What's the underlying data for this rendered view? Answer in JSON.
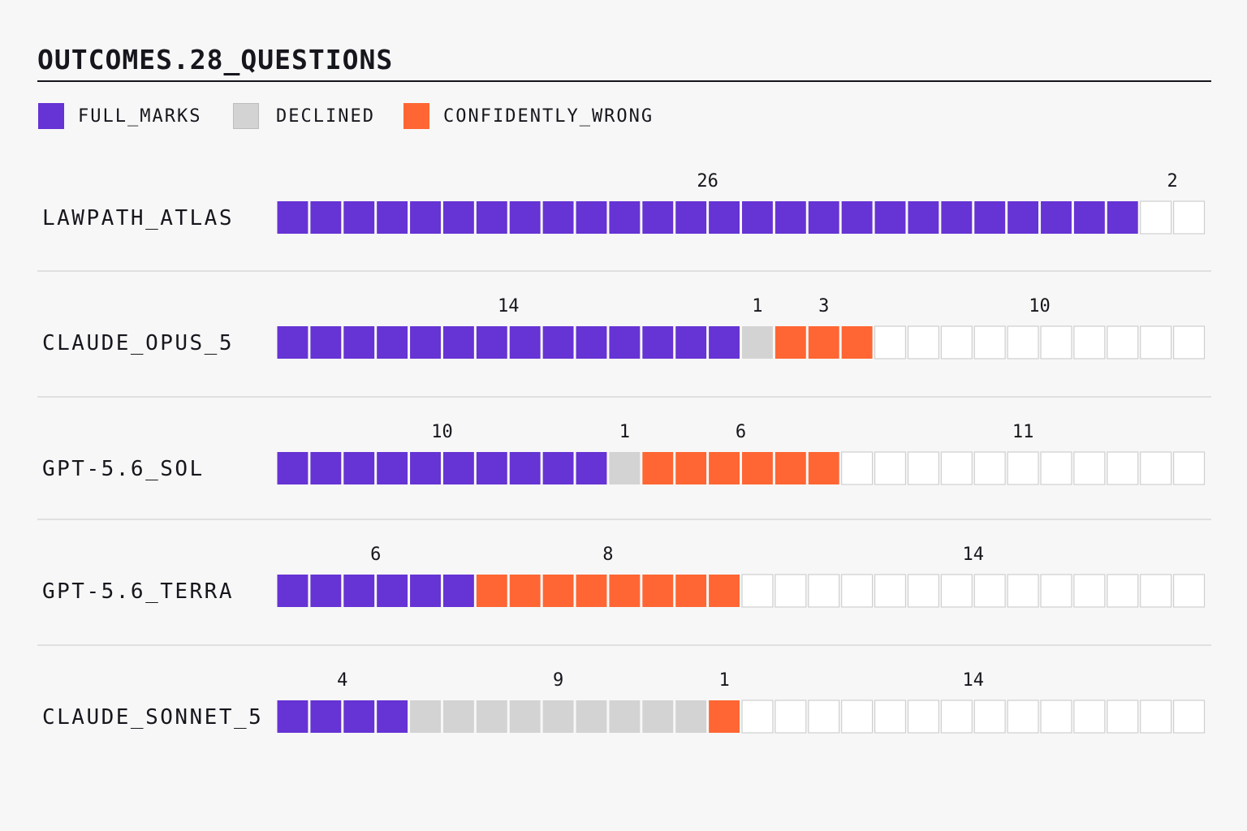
{
  "title": "OUTCOMES.28_QUESTIONS",
  "legend": [
    {
      "key": "full_marks",
      "label": "FULL_MARKS",
      "color": "#6633d4"
    },
    {
      "key": "declined",
      "label": "DECLINED",
      "color": "#d3d3d3"
    },
    {
      "key": "confidently_wrong",
      "label": "CONFIDENTLY_WRONG",
      "color": "#ff6633"
    }
  ],
  "chart_data": {
    "type": "bar",
    "subtype": "stacked-unit-squares",
    "total_questions": 28,
    "categories": [
      "LAWPATH_ATLAS",
      "CLAUDE_OPUS_5",
      "GPT-5.6_SOL",
      "GPT-5.6_TERRA",
      "CLAUDE_SONNET_5"
    ],
    "series": [
      {
        "name": "FULL_MARKS",
        "color": "#6633d4",
        "values": [
          26,
          14,
          10,
          6,
          4
        ]
      },
      {
        "name": "DECLINED",
        "color": "#d3d3d3",
        "values": [
          0,
          1,
          1,
          0,
          9
        ]
      },
      {
        "name": "CONFIDENTLY_WRONG",
        "color": "#ff6633",
        "values": [
          0,
          3,
          6,
          8,
          1
        ]
      }
    ],
    "remainder": {
      "values": [
        2,
        10,
        11,
        14,
        14
      ],
      "color": "#ffffff",
      "stroke": "#cfcfcf"
    },
    "legend_position": "top-left"
  }
}
